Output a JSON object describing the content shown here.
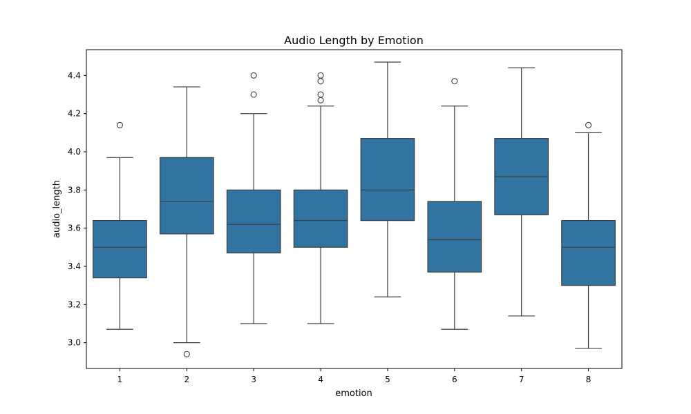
{
  "chart_data": {
    "type": "box",
    "title": "Audio Length by Emotion",
    "xlabel": "emotion",
    "ylabel": "audio_length",
    "ylim": [
      2.865,
      4.535
    ],
    "yticks": [
      "3.0",
      "3.2",
      "3.4",
      "3.6",
      "3.8",
      "4.0",
      "4.2",
      "4.4"
    ],
    "categories": [
      "1",
      "2",
      "3",
      "4",
      "5",
      "6",
      "7",
      "8"
    ],
    "box_color": "#3274a1",
    "line_color": "#3d3d3d",
    "grid": false,
    "legend": "none",
    "boxes": [
      {
        "category": "1",
        "whisker_low": 3.07,
        "q1": 3.34,
        "median": 3.5,
        "q3": 3.64,
        "whisker_high": 3.97,
        "outliers": [
          4.14
        ]
      },
      {
        "category": "2",
        "whisker_low": 3.0,
        "q1": 3.57,
        "median": 3.74,
        "q3": 3.97,
        "whisker_high": 4.34,
        "outliers": [
          2.94
        ]
      },
      {
        "category": "3",
        "whisker_low": 3.1,
        "q1": 3.47,
        "median": 3.62,
        "q3": 3.8,
        "whisker_high": 4.2,
        "outliers": [
          4.3,
          4.4
        ]
      },
      {
        "category": "4",
        "whisker_low": 3.1,
        "q1": 3.5,
        "median": 3.64,
        "q3": 3.8,
        "whisker_high": 4.24,
        "outliers": [
          4.27,
          4.3,
          4.37,
          4.4
        ]
      },
      {
        "category": "5",
        "whisker_low": 3.24,
        "q1": 3.64,
        "median": 3.8,
        "q3": 4.07,
        "whisker_high": 4.47,
        "outliers": []
      },
      {
        "category": "6",
        "whisker_low": 3.07,
        "q1": 3.37,
        "median": 3.54,
        "q3": 3.74,
        "whisker_high": 4.24,
        "outliers": [
          4.37
        ]
      },
      {
        "category": "7",
        "whisker_low": 3.14,
        "q1": 3.67,
        "median": 3.87,
        "q3": 4.07,
        "whisker_high": 4.44,
        "outliers": []
      },
      {
        "category": "8",
        "whisker_low": 2.97,
        "q1": 3.3,
        "median": 3.5,
        "q3": 3.64,
        "whisker_high": 4.1,
        "outliers": [
          4.14
        ]
      }
    ]
  }
}
